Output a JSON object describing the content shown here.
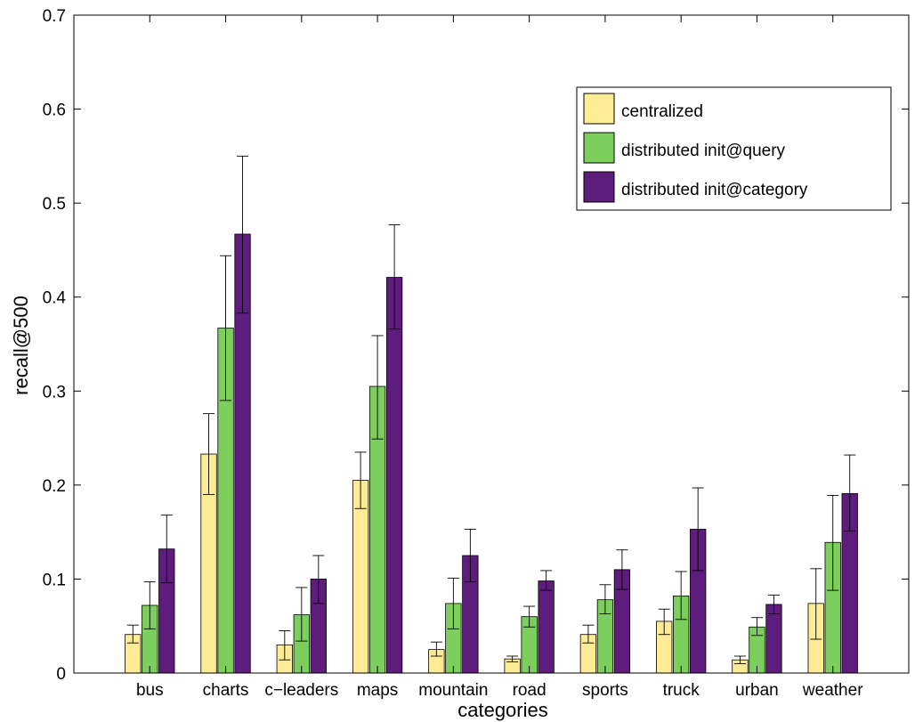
{
  "colors": {
    "centralized": "#fdeb96",
    "init_query": "#7ccf5d",
    "init_category": "#5e1d7c",
    "axis": "#000000"
  },
  "chart_data": {
    "type": "bar",
    "categories": [
      "bus",
      "charts",
      "c−leaders",
      "maps",
      "mountain",
      "road",
      "sports",
      "truck",
      "urban",
      "weather"
    ],
    "series": [
      {
        "name": "centralized",
        "values": [
          0.041,
          0.233,
          0.03,
          0.205,
          0.025,
          0.015,
          0.041,
          0.055,
          0.014,
          0.074
        ],
        "error_low": [
          0.032,
          0.19,
          0.014,
          0.175,
          0.018,
          0.012,
          0.032,
          0.041,
          0.01,
          0.036
        ],
        "error_high": [
          0.051,
          0.276,
          0.045,
          0.235,
          0.033,
          0.018,
          0.051,
          0.068,
          0.018,
          0.111
        ]
      },
      {
        "name": "distributed init@query",
        "values": [
          0.072,
          0.367,
          0.062,
          0.305,
          0.074,
          0.06,
          0.078,
          0.082,
          0.049,
          0.139
        ],
        "error_low": [
          0.047,
          0.29,
          0.034,
          0.249,
          0.047,
          0.049,
          0.063,
          0.057,
          0.04,
          0.088
        ],
        "error_high": [
          0.097,
          0.444,
          0.091,
          0.359,
          0.101,
          0.071,
          0.094,
          0.108,
          0.059,
          0.189
        ]
      },
      {
        "name": "distributed init@category",
        "values": [
          0.132,
          0.467,
          0.1,
          0.421,
          0.125,
          0.098,
          0.11,
          0.153,
          0.073,
          0.191
        ],
        "error_low": [
          0.096,
          0.383,
          0.074,
          0.366,
          0.097,
          0.088,
          0.089,
          0.109,
          0.063,
          0.151
        ],
        "error_high": [
          0.168,
          0.55,
          0.125,
          0.477,
          0.153,
          0.109,
          0.131,
          0.197,
          0.083,
          0.232
        ]
      }
    ],
    "xlabel": "categories",
    "ylabel": "recall@500",
    "ylim": [
      0,
      0.7
    ],
    "yticks": [
      "0",
      "0.1",
      "0.2",
      "0.3",
      "0.4",
      "0.5",
      "0.6",
      "0.7"
    ],
    "yticks_values": [
      0,
      0.1,
      0.2,
      0.3,
      0.4,
      0.5,
      0.6,
      0.7
    ],
    "grid": false,
    "legend": {
      "placement": "top-right",
      "entries": [
        "centralized",
        "distributed init@query",
        "distributed init@category"
      ]
    }
  }
}
